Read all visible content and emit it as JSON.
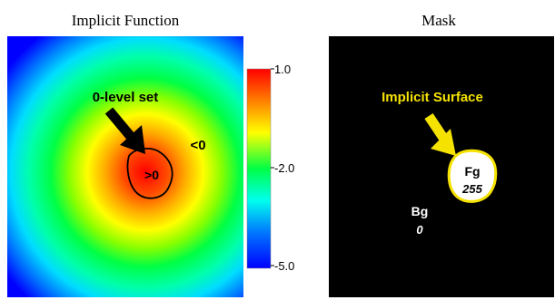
{
  "left_panel": {
    "title": "Implicit Function",
    "level_set_label": "0-level set",
    "inside_label": ">0",
    "outside_label": "<0",
    "colorbar": {
      "ticks": [
        "1.0",
        "-2.0",
        "-5.0"
      ],
      "colors": [
        "#ff0000",
        "#ff9900",
        "#ffff00",
        "#00ff33",
        "#00ffff",
        "#0066ff",
        "#0000ff"
      ]
    }
  },
  "right_panel": {
    "title": "Mask",
    "surface_label": "Implicit Surface",
    "fg_label": "Fg",
    "fg_value": "255",
    "bg_label": "Bg",
    "bg_value": "0",
    "surface_color": "#f5e200",
    "background_color": "#000000"
  }
}
